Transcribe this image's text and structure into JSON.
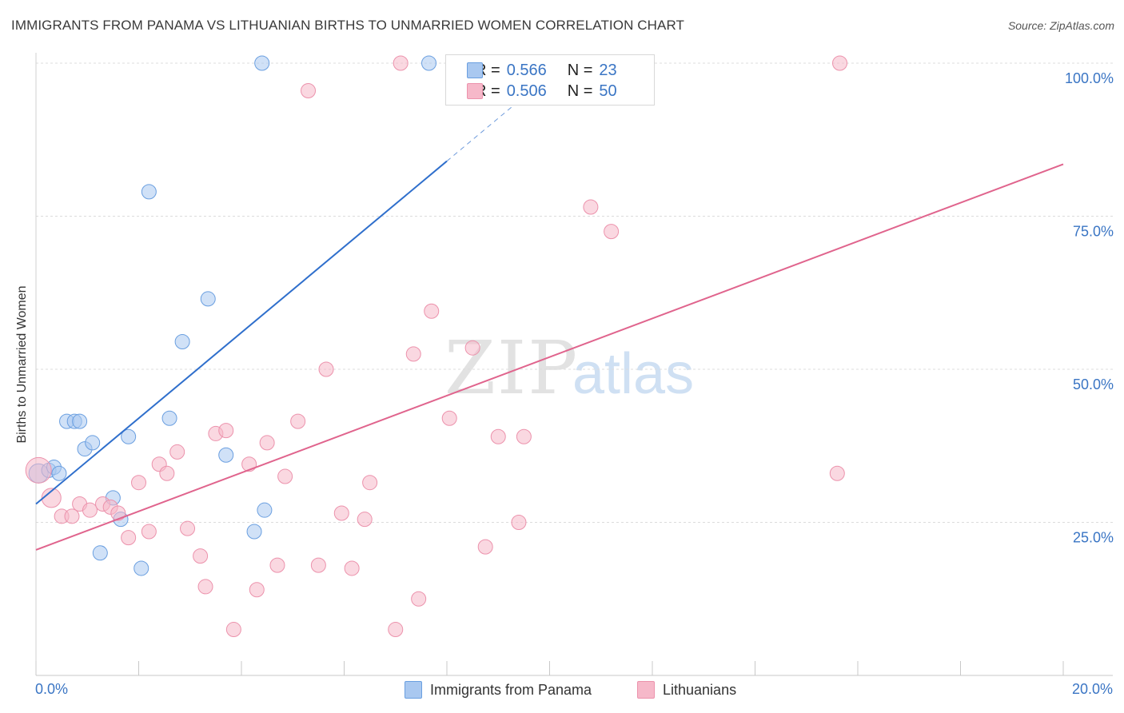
{
  "title": "IMMIGRANTS FROM PANAMA VS LITHUANIAN BIRTHS TO UNMARRIED WOMEN CORRELATION CHART",
  "source": "Source: ZipAtlas.com",
  "watermark": {
    "zip": "ZIP",
    "atlas": "atlas"
  },
  "legend_stats": [
    {
      "r_label": "R =",
      "r_value": "0.566",
      "n_label": "N =",
      "n_value": "23",
      "color": "#a9c8f0"
    },
    {
      "r_label": "R =",
      "r_value": "0.506",
      "n_label": "N =",
      "n_value": "50",
      "color": "#f6b8c9"
    }
  ],
  "chart_data": {
    "type": "scatter",
    "title": "IMMIGRANTS FROM PANAMA VS LITHUANIAN BIRTHS TO UNMARRIED WOMEN CORRELATION CHART",
    "xlabel": "",
    "ylabel": "Births to Unmarried Women",
    "xlim": [
      0,
      20
    ],
    "ylim": [
      0,
      100
    ],
    "x_tick_labels": [
      "0.0%",
      "20.0%"
    ],
    "y_tick_labels": [
      "100.0%",
      "75.0%",
      "50.0%",
      "25.0%"
    ],
    "y_ticks": [
      100,
      75,
      50,
      25
    ],
    "grid": true,
    "legend_position": "bottom",
    "series": [
      {
        "name": "Immigrants from Panama",
        "color": "#a9c8f0",
        "stroke": "#6a9fe0",
        "line_color": "#2f6fcc",
        "trend": {
          "x0": 0.0,
          "y0": 28.0,
          "x1": 8.0,
          "y1": 84.0,
          "dash_to_x": 9.5,
          "dash_to_y": 94.5
        },
        "points": [
          [
            0.05,
            33.0,
            12
          ],
          [
            0.25,
            33.5,
            9
          ],
          [
            0.35,
            34.0,
            9
          ],
          [
            0.45,
            33.0,
            9
          ],
          [
            0.6,
            41.5,
            9
          ],
          [
            0.75,
            41.5,
            9
          ],
          [
            0.85,
            41.5,
            9
          ],
          [
            0.95,
            37.0,
            9
          ],
          [
            1.1,
            38.0,
            9
          ],
          [
            1.25,
            20.0,
            9
          ],
          [
            1.5,
            29.0,
            9
          ],
          [
            1.65,
            25.5,
            9
          ],
          [
            1.8,
            39.0,
            9
          ],
          [
            2.05,
            17.5,
            9
          ],
          [
            2.2,
            79.0,
            9
          ],
          [
            2.6,
            42.0,
            9
          ],
          [
            2.85,
            54.5,
            9
          ],
          [
            3.35,
            61.5,
            9
          ],
          [
            3.7,
            36.0,
            9
          ],
          [
            4.25,
            23.5,
            9
          ],
          [
            4.45,
            27.0,
            9
          ],
          [
            4.4,
            100.0,
            9
          ],
          [
            7.65,
            100.0,
            9
          ]
        ]
      },
      {
        "name": "Lithuanians",
        "color": "#f6b8c9",
        "stroke": "#ec92ac",
        "line_color": "#e0648d",
        "trend": {
          "x0": 0.0,
          "y0": 20.5,
          "x1": 20.0,
          "y1": 83.5
        },
        "points": [
          [
            0.05,
            33.5,
            16
          ],
          [
            0.3,
            29.0,
            12
          ],
          [
            0.5,
            26.0,
            9
          ],
          [
            0.7,
            26.0,
            9
          ],
          [
            0.85,
            28.0,
            9
          ],
          [
            1.05,
            27.0,
            9
          ],
          [
            1.3,
            28.0,
            9
          ],
          [
            1.45,
            27.5,
            9
          ],
          [
            1.6,
            26.5,
            9
          ],
          [
            1.8,
            22.5,
            9
          ],
          [
            2.0,
            31.5,
            9
          ],
          [
            2.2,
            23.5,
            9
          ],
          [
            2.4,
            34.5,
            9
          ],
          [
            2.55,
            33.0,
            9
          ],
          [
            2.75,
            36.5,
            9
          ],
          [
            2.95,
            24.0,
            9
          ],
          [
            3.2,
            19.5,
            9
          ],
          [
            3.3,
            14.5,
            9
          ],
          [
            3.5,
            39.5,
            9
          ],
          [
            3.7,
            40.0,
            9
          ],
          [
            3.85,
            7.5,
            9
          ],
          [
            4.15,
            34.5,
            9
          ],
          [
            4.3,
            14.0,
            9
          ],
          [
            4.5,
            38.0,
            9
          ],
          [
            4.7,
            18.0,
            9
          ],
          [
            4.85,
            32.5,
            9
          ],
          [
            5.1,
            41.5,
            9
          ],
          [
            5.3,
            95.5,
            9
          ],
          [
            5.5,
            18.0,
            9
          ],
          [
            5.65,
            50.0,
            9
          ],
          [
            5.95,
            26.5,
            9
          ],
          [
            6.15,
            17.5,
            9
          ],
          [
            6.4,
            25.5,
            9
          ],
          [
            6.5,
            31.5,
            9
          ],
          [
            7.0,
            7.5,
            9
          ],
          [
            7.1,
            100.0,
            9
          ],
          [
            7.35,
            52.5,
            9
          ],
          [
            7.45,
            12.5,
            9
          ],
          [
            7.7,
            59.5,
            9
          ],
          [
            8.05,
            42.0,
            9
          ],
          [
            8.5,
            53.5,
            9
          ],
          [
            8.75,
            21.0,
            9
          ],
          [
            9.0,
            39.0,
            9
          ],
          [
            9.4,
            25.0,
            9
          ],
          [
            9.5,
            39.0,
            9
          ],
          [
            10.8,
            76.5,
            9
          ],
          [
            11.2,
            72.5,
            9
          ],
          [
            11.9,
            100.0,
            9
          ],
          [
            15.6,
            33.0,
            9
          ],
          [
            15.65,
            100.0,
            9
          ]
        ]
      }
    ]
  }
}
